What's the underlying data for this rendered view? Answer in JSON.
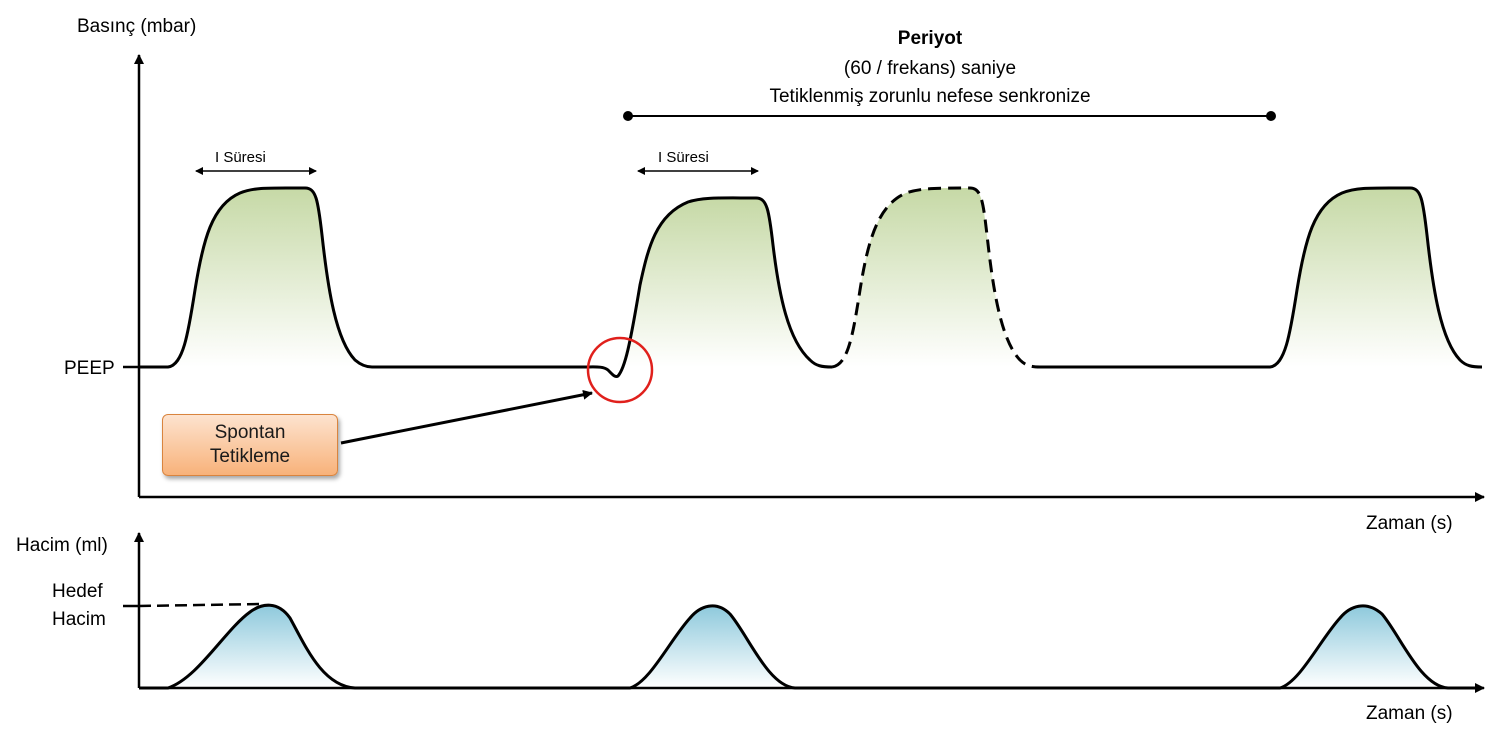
{
  "pressure_chart": {
    "ylabel": "Basınç (mbar)",
    "xlabel": "Zaman (s)",
    "peep_label": "PEEP",
    "i_time_label": "I Süresi",
    "period": {
      "title": "Periyot",
      "line1": "(60 / frekans) saniye",
      "line2": "Tetiklenmiş zorunlu nefese senkronize"
    },
    "callout": {
      "line1": "Spontan",
      "line2": "Tetikleme"
    }
  },
  "volume_chart": {
    "ylabel": "Hacim (ml)",
    "xlabel": "Zaman (s)",
    "target_label_line1": "Hedef",
    "target_label_line2": "Hacim"
  },
  "colors": {
    "pressure_fill": "#c6d9a6",
    "volume_fill": "#8ec9dc",
    "trigger_circle": "#e0201c",
    "callout_fill": "#f8b27a",
    "axis": "#000000"
  }
}
